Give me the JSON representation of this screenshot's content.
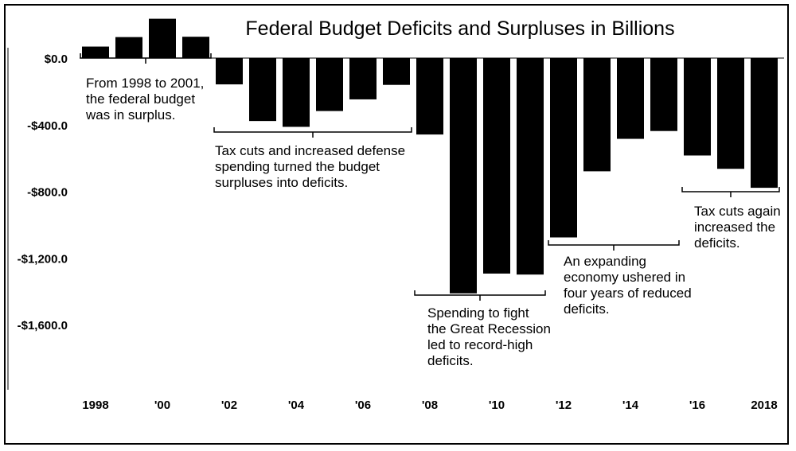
{
  "chart_data": {
    "type": "bar",
    "title": "Federal Budget Deficits and Surpluses in Billions",
    "xlabel": "",
    "ylabel": "",
    "ylim": [
      -2000,
      100
    ],
    "categories": [
      "1998",
      "1999",
      "2000",
      "2001",
      "2002",
      "2003",
      "2004",
      "2005",
      "2006",
      "2007",
      "2008",
      "2009",
      "2010",
      "2011",
      "2012",
      "2013",
      "2014",
      "2015",
      "2016",
      "2017",
      "2018"
    ],
    "values": [
      69,
      126,
      236,
      128,
      -158,
      -378,
      -413,
      -318,
      -248,
      -161,
      -459,
      -1413,
      -1294,
      -1300,
      -1077,
      -680,
      -485,
      -438,
      -585,
      -665,
      -779
    ],
    "yticks": [
      0,
      -400,
      -800,
      -1200,
      -1600
    ],
    "ytick_labels": [
      "$0.0",
      "-$400.0",
      "-$800.0",
      "-$1,200.0",
      "-$1,600.0"
    ],
    "xtick_labels": [
      {
        "index": 0,
        "label": "1998"
      },
      {
        "index": 2,
        "label": "'00"
      },
      {
        "index": 4,
        "label": "'02"
      },
      {
        "index": 6,
        "label": "'04"
      },
      {
        "index": 8,
        "label": "'06"
      },
      {
        "index": 10,
        "label": "'08"
      },
      {
        "index": 12,
        "label": "'10"
      },
      {
        "index": 14,
        "label": "'12"
      },
      {
        "index": 16,
        "label": "'14"
      },
      {
        "index": 18,
        "label": "'16"
      },
      {
        "index": 20,
        "label": "2018"
      }
    ],
    "annotations": [
      {
        "span": [
          0,
          3
        ],
        "lines": [
          "From 1998 to 2001,",
          "the federal budget",
          "was in surplus."
        ]
      },
      {
        "span": [
          4,
          9
        ],
        "lines": [
          "Tax cuts and increased defense",
          "spending turned the budget",
          "surpluses into deficits."
        ]
      },
      {
        "span": [
          10,
          13
        ],
        "lines": [
          "Spending to fight",
          "the Great Recession",
          "led to record-high",
          "deficits."
        ]
      },
      {
        "span": [
          14,
          17
        ],
        "lines": [
          "An expanding",
          "economy ushered in",
          "four years of reduced",
          "deficits."
        ]
      },
      {
        "span": [
          18,
          20
        ],
        "lines": [
          "Tax cuts again",
          "increased the",
          "deficits."
        ]
      }
    ],
    "colors": {
      "bar": "#000000",
      "text": "#000000",
      "background": "#ffffff"
    }
  }
}
